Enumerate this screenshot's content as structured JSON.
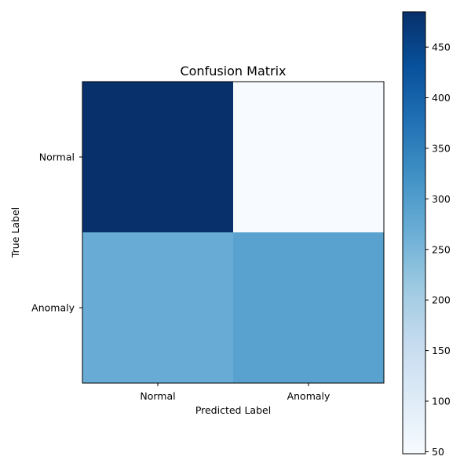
{
  "chart_data": {
    "type": "heatmap",
    "title": "Confusion Matrix",
    "xlabel": "Predicted Label",
    "ylabel": "True Label",
    "x_categories": [
      "Normal",
      "Anomaly"
    ],
    "y_categories": [
      "Normal",
      "Anomaly"
    ],
    "values": [
      [
        485,
        48
      ],
      [
        270,
        290
      ]
    ],
    "colormap": "Blues",
    "colorbar": {
      "range": [
        48,
        485
      ],
      "ticks": [
        50,
        100,
        150,
        200,
        250,
        300,
        350,
        400,
        450
      ]
    }
  }
}
